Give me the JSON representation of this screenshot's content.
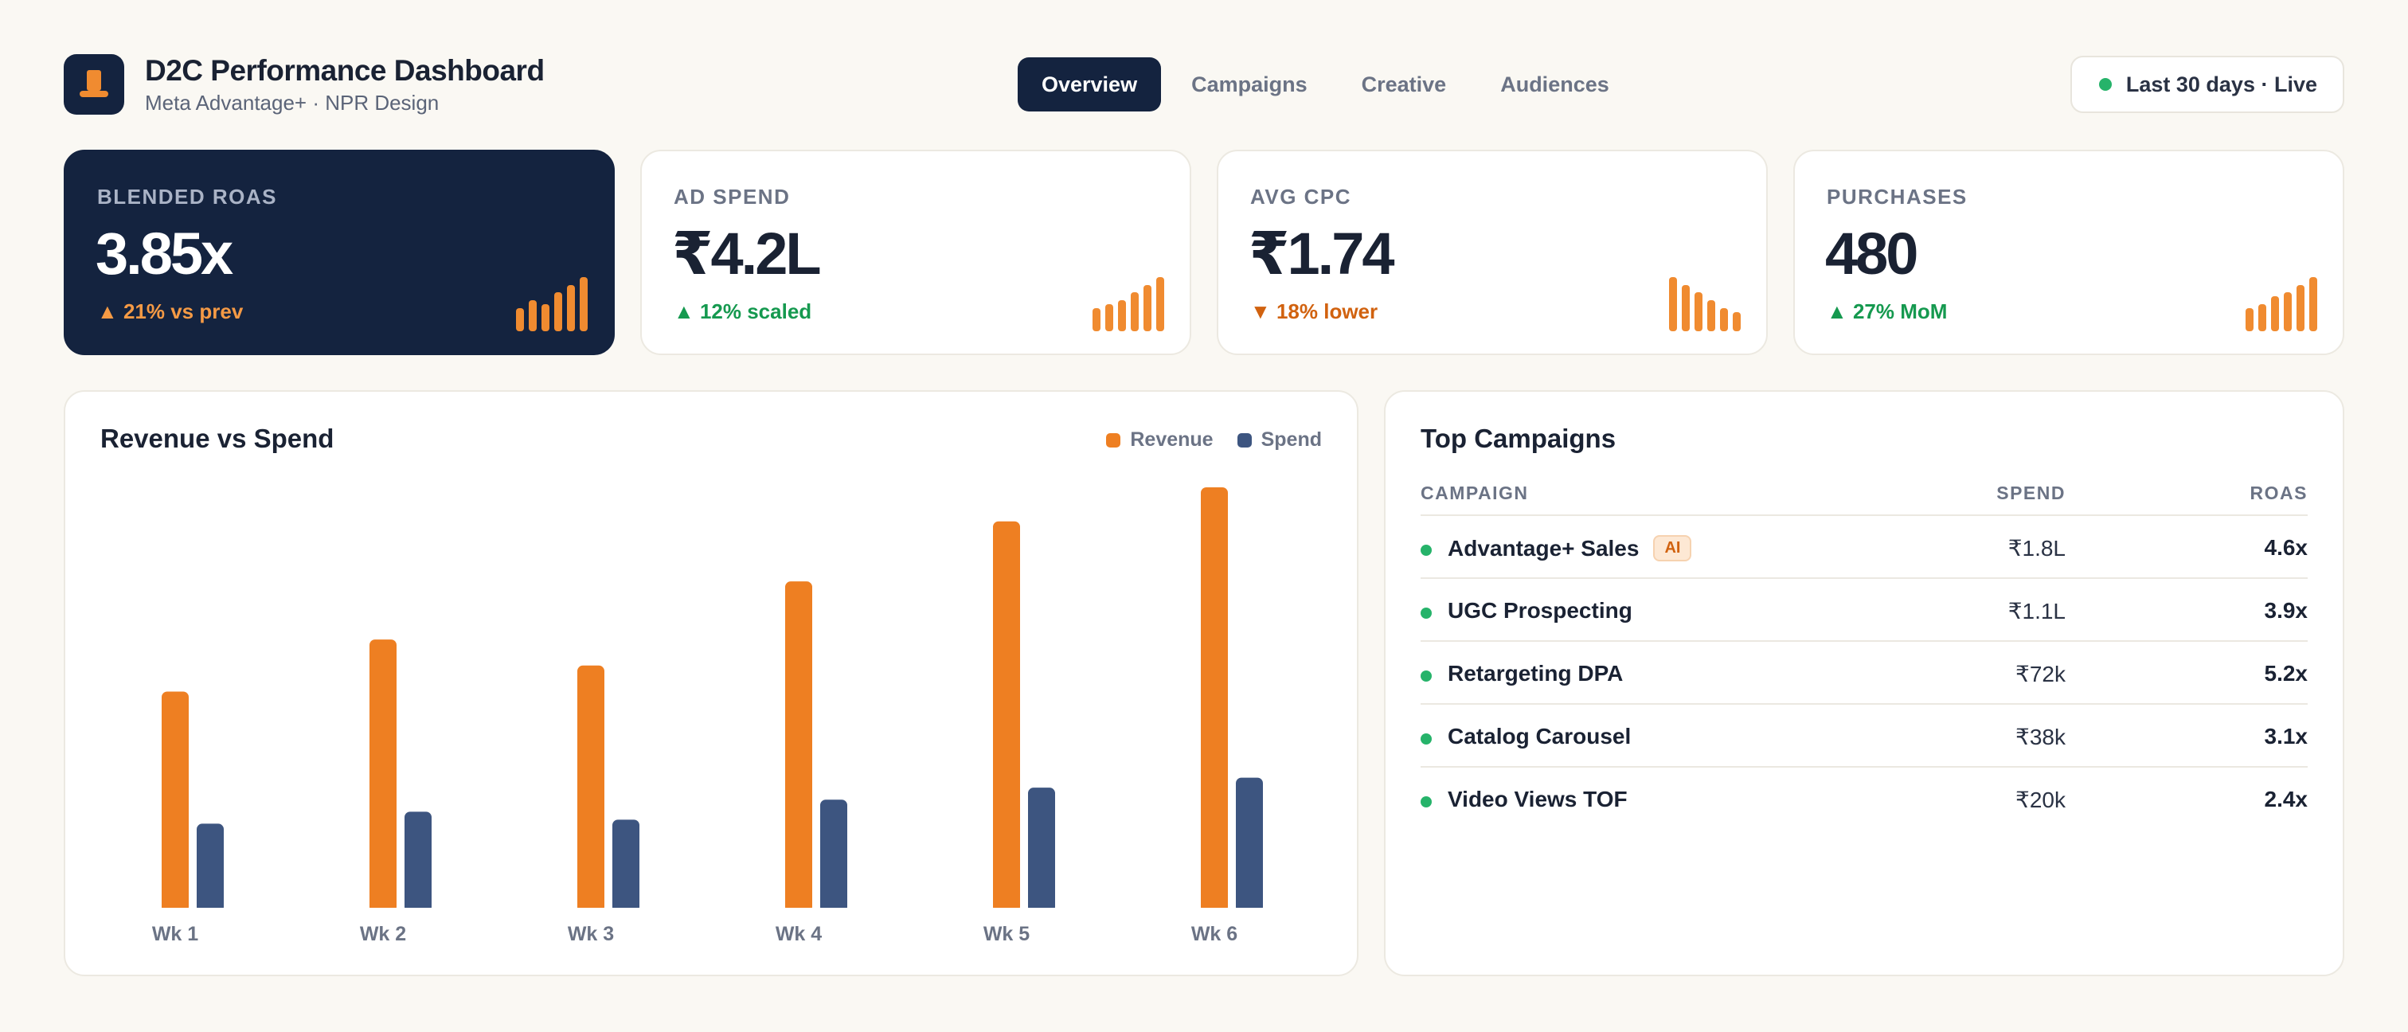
{
  "header": {
    "title": "D2C Performance Dashboard",
    "subtitle": "Meta Advantage+ · NPR Design",
    "logo_icon": "hat-icon",
    "tabs": [
      {
        "label": "Overview",
        "active": true
      },
      {
        "label": "Campaigns",
        "active": false
      },
      {
        "label": "Creative",
        "active": false
      },
      {
        "label": "Audiences",
        "active": false
      }
    ],
    "range_label": "Last 30 days · Live",
    "range_dot_color": "#26b36a"
  },
  "kpis": [
    {
      "label": "BLENDED ROAS",
      "value": "3.85x",
      "delta": "▲ 21% vs prev",
      "trend": "up",
      "theme": "dark",
      "spark": [
        3,
        4,
        3.5,
        5,
        6,
        7
      ]
    },
    {
      "label": "AD SPEND",
      "value": "₹4.2L",
      "delta": "▲ 12% scaled",
      "trend": "up",
      "theme": "light",
      "spark": [
        3,
        3.5,
        4,
        5,
        6,
        7
      ]
    },
    {
      "label": "AVG CPC",
      "value": "₹1.74",
      "delta": "▼ 18% lower",
      "trend": "down",
      "theme": "light",
      "spark": [
        7,
        6,
        5,
        4,
        3,
        2.5
      ]
    },
    {
      "label": "PURCHASES",
      "value": "480",
      "delta": "▲ 27% MoM",
      "trend": "up",
      "theme": "light",
      "spark": [
        3,
        3.5,
        4.5,
        5,
        6,
        7
      ]
    }
  ],
  "chart_panel": {
    "title": "Revenue vs Spend",
    "legend": [
      {
        "name": "Revenue",
        "color": "#ee7f22"
      },
      {
        "name": "Spend",
        "color": "#3d5580"
      }
    ]
  },
  "chart_data": {
    "type": "bar",
    "title": "Revenue vs Spend",
    "categories": [
      "Wk 1",
      "Wk 2",
      "Wk 3",
      "Wk 4",
      "Wk 5",
      "Wk 6"
    ],
    "series": [
      {
        "name": "Revenue",
        "color": "#ee7f22",
        "values": [
          54,
          67,
          60.5,
          81.5,
          96.5,
          105
        ]
      },
      {
        "name": "Spend",
        "color": "#3d5580",
        "values": [
          21,
          24,
          22,
          27,
          30,
          32.5
        ]
      }
    ],
    "ylim": [
      0,
      105
    ],
    "grid": false,
    "legend_position": "top-right"
  },
  "table_panel": {
    "title": "Top Campaigns",
    "columns": [
      "CAMPAIGN",
      "SPEND",
      "ROAS"
    ],
    "rows": [
      {
        "name": "Advantage+ Sales",
        "badge": "AI",
        "spend": "₹1.8L",
        "roas": "4.6x"
      },
      {
        "name": "UGC Prospecting",
        "badge": "",
        "spend": "₹1.1L",
        "roas": "3.9x"
      },
      {
        "name": "Retargeting DPA",
        "badge": "",
        "spend": "₹72k",
        "roas": "5.2x"
      },
      {
        "name": "Catalog Carousel",
        "badge": "",
        "spend": "₹38k",
        "roas": "3.1x"
      },
      {
        "name": "Video Views TOF",
        "badge": "",
        "spend": "₹20k",
        "roas": "2.4x"
      }
    ]
  }
}
